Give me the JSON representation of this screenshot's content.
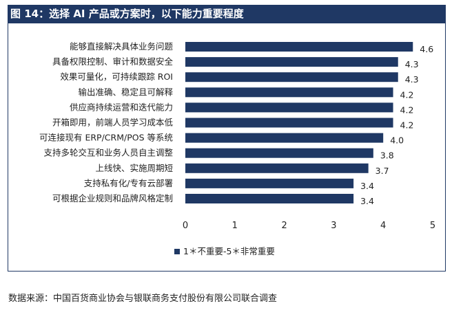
{
  "figure_title": "图 14：选择 AI 产品或方案时，以下能力重要程度",
  "source": "数据来源：中国百货商业协会与银联商务支付股份有限公司联合调查",
  "colors": {
    "bar": "#1f3864",
    "title_bg": "#1f3864"
  },
  "chart_data": {
    "type": "bar",
    "orientation": "horizontal",
    "categories": [
      "能够直接解决具体业务问题",
      "具备权限控制、审计和数据安全",
      "效果可量化，可持续跟踪 ROI",
      "输出准确、稳定且可解释",
      "供应商持续运营和迭代能力",
      "开箱即用，前端人员学习成本低",
      "可连接现有 ERP/CRM/POS 等系统",
      "支持多轮交互和业务人员自主调整",
      "上线快、实施周期短",
      "支持私有化/专有云部署",
      "可根据企业规则和品牌风格定制"
    ],
    "values": [
      4.6,
      4.3,
      4.3,
      4.2,
      4.2,
      4.2,
      4.0,
      3.8,
      3.7,
      3.4,
      3.4
    ],
    "value_labels": [
      "4.6",
      "4.3",
      "4.3",
      "4.2",
      "4.2",
      "4.2",
      "4.0",
      "3.8",
      "3.7",
      "3.4",
      "3.4"
    ],
    "xlim": [
      0,
      5
    ],
    "xticks": [
      "0",
      "1",
      "2",
      "3",
      "4",
      "5"
    ],
    "legend": {
      "label": "1＊不重要-5＊非常重要",
      "position": "bottom"
    },
    "grid": false
  }
}
